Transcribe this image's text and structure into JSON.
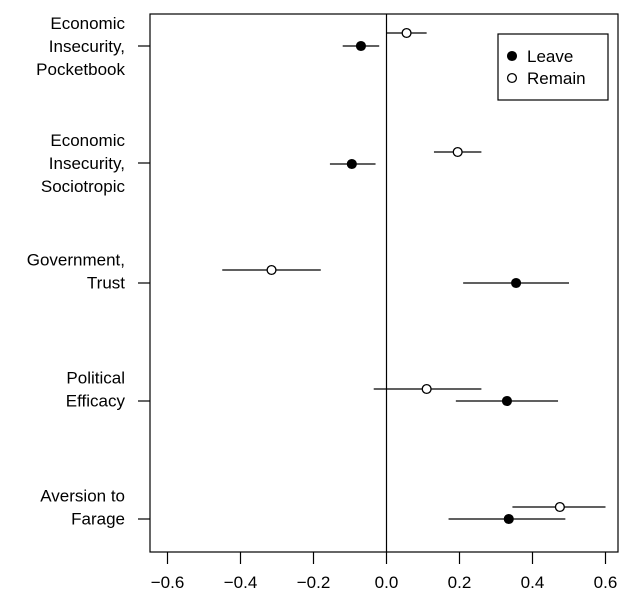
{
  "chart_data": {
    "type": "scatter",
    "subtype": "dot-and-whisker",
    "title": "",
    "xlabel": "",
    "ylabel": "",
    "xlim": [
      -0.6,
      0.6
    ],
    "x_ticks": [
      -0.6,
      -0.4,
      -0.2,
      0.0,
      0.2,
      0.4,
      0.6
    ],
    "x_tick_labels": [
      "−0.6",
      "−0.4",
      "−0.2",
      "0.0",
      "0.2",
      "0.4",
      "0.6"
    ],
    "grid": false,
    "reference_line_x": 0.0,
    "legend": {
      "placement": "top-right",
      "entries": [
        {
          "name": "Leave",
          "marker": "filled-circle"
        },
        {
          "name": "Remain",
          "marker": "open-circle"
        }
      ]
    },
    "categories": [
      {
        "lines": [
          "Economic",
          "Insecurity,",
          "Pocketbook"
        ]
      },
      {
        "lines": [
          "Economic",
          "Insecurity,",
          "Sociotropic"
        ]
      },
      {
        "lines": [
          "Government,",
          "Trust"
        ]
      },
      {
        "lines": [
          "Political",
          "Efficacy"
        ]
      },
      {
        "lines": [
          "Aversion to",
          "Farage"
        ]
      }
    ],
    "series": [
      {
        "name": "Leave",
        "marker": "filled",
        "color": "#000000",
        "points": [
          {
            "estimate": -0.07,
            "lower": -0.12,
            "upper": -0.02
          },
          {
            "estimate": -0.095,
            "lower": -0.155,
            "upper": -0.03
          },
          {
            "estimate": 0.355,
            "lower": 0.21,
            "upper": 0.5
          },
          {
            "estimate": 0.33,
            "lower": 0.19,
            "upper": 0.47
          },
          {
            "estimate": 0.335,
            "lower": 0.17,
            "upper": 0.49
          }
        ]
      },
      {
        "name": "Remain",
        "marker": "open",
        "color": "#000000",
        "points": [
          {
            "estimate": 0.055,
            "lower": 0.0,
            "upper": 0.11
          },
          {
            "estimate": 0.195,
            "lower": 0.13,
            "upper": 0.26
          },
          {
            "estimate": -0.315,
            "lower": -0.45,
            "upper": -0.18
          },
          {
            "estimate": 0.11,
            "lower": -0.035,
            "upper": 0.26
          },
          {
            "estimate": 0.475,
            "lower": 0.345,
            "upper": 0.6
          }
        ]
      }
    ]
  }
}
